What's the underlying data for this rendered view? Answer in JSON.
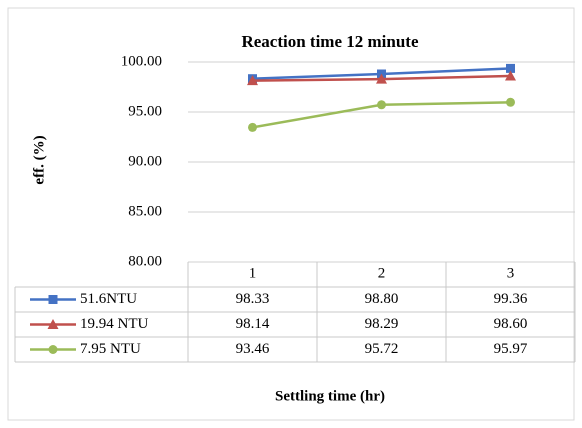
{
  "chart_data": {
    "type": "line",
    "title": "Reaction time 12 minute",
    "x_label": "Settling time (hr)",
    "y_label": "eff. (%)",
    "categories": [
      "1",
      "2",
      "3"
    ],
    "series": [
      {
        "name": "51.6NTU",
        "color": "#4472c4",
        "marker": "square",
        "values": [
          98.33,
          98.8,
          99.36
        ],
        "value_labels": [
          "98.33",
          "98.80",
          "99.36"
        ]
      },
      {
        "name": "19.94 NTU",
        "color": "#c0504d",
        "marker": "triangle",
        "values": [
          98.14,
          98.29,
          98.6
        ],
        "value_labels": [
          "98.14",
          "98.29",
          "98.60"
        ]
      },
      {
        "name": "7.95 NTU",
        "color": "#9bbb59",
        "marker": "circle",
        "values": [
          93.46,
          95.72,
          95.97
        ],
        "value_labels": [
          "93.46",
          "95.72",
          "95.97"
        ]
      }
    ],
    "ylim": [
      80,
      100
    ],
    "yticks": [
      {
        "value": 80,
        "label": "80.00"
      },
      {
        "value": 85,
        "label": "85.00"
      },
      {
        "value": 90,
        "label": "90.00"
      },
      {
        "value": 95,
        "label": "95.00"
      },
      {
        "value": 100,
        "label": "100.00"
      }
    ],
    "grid": true,
    "data_table": true
  }
}
